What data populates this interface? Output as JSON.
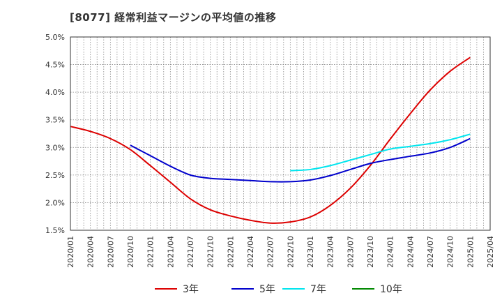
{
  "chart_data": {
    "type": "line",
    "title": "[8077]  経常利益マージンの平均値の推移",
    "ylim": [
      1.5,
      5.0
    ],
    "y_ticks": [
      "1.5%",
      "2.0%",
      "2.5%",
      "3.0%",
      "3.5%",
      "4.0%",
      "4.5%",
      "5.0%"
    ],
    "y_tick_values": [
      1.5,
      2.0,
      2.5,
      3.0,
      3.5,
      4.0,
      4.5,
      5.0
    ],
    "x_ticks": [
      "2020/01",
      "2020/04",
      "2020/07",
      "2020/10",
      "2021/01",
      "2021/04",
      "2021/07",
      "2021/10",
      "2022/01",
      "2022/04",
      "2022/07",
      "2022/10",
      "2023/01",
      "2023/04",
      "2023/07",
      "2023/10",
      "2024/01",
      "2024/04",
      "2024/07",
      "2024/10",
      "2025/01",
      "2025/04"
    ],
    "grid": true,
    "legend_position": "bottom",
    "series": [
      {
        "name": "3年",
        "color": "#dd0000",
        "x": [
          "2020/01",
          "2020/04",
          "2020/07",
          "2020/10",
          "2021/01",
          "2021/04",
          "2021/07",
          "2021/10",
          "2022/01",
          "2022/04",
          "2022/07",
          "2022/10",
          "2023/01",
          "2023/04",
          "2023/07",
          "2023/10",
          "2024/01",
          "2024/04",
          "2024/07",
          "2024/10",
          "2025/01"
        ],
        "values": [
          3.38,
          3.29,
          3.16,
          2.96,
          2.67,
          2.37,
          2.07,
          1.87,
          1.76,
          1.68,
          1.63,
          1.65,
          1.74,
          1.95,
          2.26,
          2.67,
          3.15,
          3.61,
          4.04,
          4.38,
          4.63
        ]
      },
      {
        "name": "5年",
        "color": "#0000cc",
        "x": [
          "2020/10",
          "2021/01",
          "2021/04",
          "2021/07",
          "2021/10",
          "2022/01",
          "2022/04",
          "2022/07",
          "2022/10",
          "2023/01",
          "2023/04",
          "2023/07",
          "2023/10",
          "2024/01",
          "2024/04",
          "2024/07",
          "2024/10",
          "2025/01"
        ],
        "values": [
          3.04,
          2.85,
          2.66,
          2.5,
          2.44,
          2.42,
          2.4,
          2.38,
          2.38,
          2.41,
          2.49,
          2.6,
          2.71,
          2.78,
          2.84,
          2.9,
          3.0,
          3.16
        ]
      },
      {
        "name": "7年",
        "color": "#00e5ee",
        "x": [
          "2022/10",
          "2023/01",
          "2023/04",
          "2023/07",
          "2023/10",
          "2024/01",
          "2024/04",
          "2024/07",
          "2024/10",
          "2025/01"
        ],
        "values": [
          2.58,
          2.6,
          2.67,
          2.77,
          2.87,
          2.97,
          3.02,
          3.07,
          3.14,
          3.24
        ]
      },
      {
        "name": "10年",
        "color": "#008800",
        "x": [],
        "values": []
      }
    ]
  }
}
